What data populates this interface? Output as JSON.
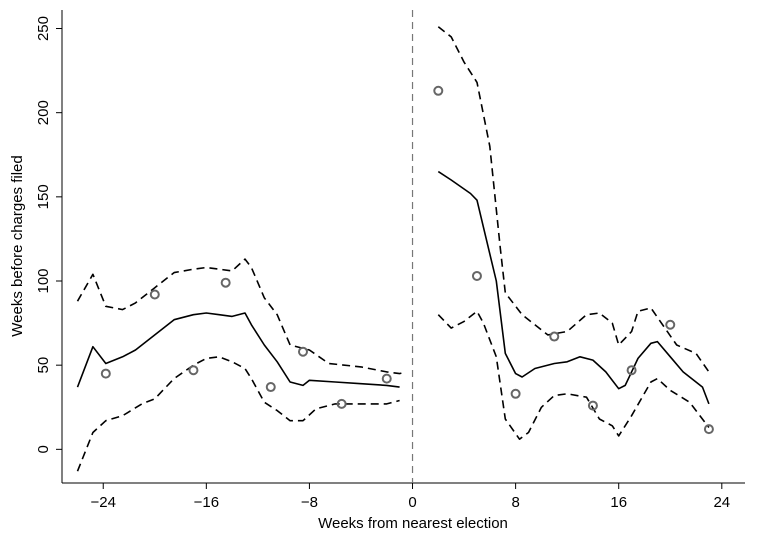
{
  "chart_data": {
    "type": "line",
    "x_label": "Weeks from nearest election",
    "y_label": "Weeks before charges filed",
    "xlim": [
      -27.2,
      25.8
    ],
    "ylim": [
      -20,
      261
    ],
    "xticks": [
      {
        "value": -24,
        "label": "−24"
      },
      {
        "value": -16,
        "label": "−16"
      },
      {
        "value": -8,
        "label": "−8"
      },
      0,
      8,
      16,
      24
    ],
    "yticks": [
      0,
      50,
      100,
      150,
      200,
      250
    ],
    "cutoff": 0,
    "grid": false,
    "series": [
      {
        "style": "solid",
        "color": "#000000",
        "x": [
          -26,
          -24.8,
          -23.8,
          -22.5,
          -21.5,
          -20,
          -18.5,
          -17,
          -16,
          -15,
          -14,
          -13,
          -12.5,
          -11.5,
          -10.5,
          -9.5,
          -8.5,
          -8,
          -6,
          -4,
          -2,
          -1
        ],
        "values": [
          37,
          61,
          51,
          55,
          59,
          68,
          77,
          80,
          81,
          80,
          79,
          81,
          74,
          62,
          52,
          40,
          38,
          41,
          40,
          39,
          38,
          37
        ]
      },
      {
        "style": "dashed",
        "color": "#000000",
        "x": [
          -26,
          -24.8,
          -23.8,
          -22.5,
          -21.5,
          -20,
          -18.5,
          -17,
          -16,
          -15,
          -14,
          -13,
          -12.5,
          -11.5,
          -10.5,
          -9.5,
          -8,
          -6.5,
          -4,
          -2,
          -1,
          -0.5
        ],
        "values": [
          88,
          104,
          85,
          83,
          87,
          96,
          105,
          107,
          108,
          107,
          106,
          113,
          108,
          90,
          80,
          62,
          59,
          51,
          49,
          46,
          45,
          46
        ]
      },
      {
        "style": "dashed",
        "color": "#000000",
        "x": [
          -26,
          -24.8,
          -23.8,
          -22.5,
          -21,
          -20,
          -18.5,
          -17,
          -16,
          -15,
          -14,
          -13,
          -12.5,
          -11.5,
          -10.5,
          -9.5,
          -8.5,
          -7.5,
          -6,
          -4,
          -2,
          -1
        ],
        "values": [
          -13,
          10,
          17,
          20,
          27,
          30,
          42,
          50,
          54,
          55,
          52,
          48,
          42,
          28,
          23,
          17,
          17,
          24,
          27,
          27,
          27,
          29
        ]
      },
      {
        "style": "solid",
        "color": "#000000",
        "x": [
          2,
          3,
          4.5,
          5,
          5.5,
          6.5,
          7.2,
          8,
          8.5,
          9.5,
          11,
          12,
          13,
          14,
          15,
          16,
          16.5,
          17.5,
          18.5,
          19,
          20,
          21,
          22.5,
          23
        ],
        "values": [
          165,
          160,
          152,
          148,
          132,
          100,
          57,
          45,
          43,
          48,
          51,
          52,
          55,
          53,
          46,
          36,
          38,
          54,
          63,
          64,
          55,
          46,
          37,
          27
        ]
      },
      {
        "style": "dashed",
        "color": "#000000",
        "x": [
          2,
          3,
          4,
          5,
          6,
          6.8,
          7.2,
          8.5,
          9.5,
          10.5,
          12,
          13.5,
          14.5,
          15.5,
          16,
          17,
          17.5,
          18.5,
          19.5,
          20.5,
          22,
          23
        ],
        "values": [
          251,
          245,
          230,
          218,
          180,
          120,
          93,
          80,
          74,
          68,
          70,
          80,
          81,
          75,
          62,
          70,
          82,
          84,
          73,
          62,
          57,
          46
        ]
      },
      {
        "style": "dashed",
        "color": "#000000",
        "x": [
          2,
          3,
          4,
          5,
          5.5,
          6.5,
          7.2,
          8.3,
          9,
          10,
          11,
          12,
          13.5,
          14.5,
          15.5,
          16,
          17,
          18.5,
          19,
          20,
          21.5,
          23
        ],
        "values": [
          80,
          72,
          76,
          82,
          75,
          55,
          18,
          6,
          10,
          25,
          32,
          33,
          31,
          18,
          14,
          8,
          20,
          40,
          42,
          35,
          28,
          13
        ]
      },
      {
        "style": "markers",
        "color": "#666666",
        "x": [
          -23.8,
          -20,
          -17,
          -14.5,
          -11,
          -8.5,
          -5.5,
          -2,
          2,
          5,
          8,
          11,
          14,
          17,
          20,
          23
        ],
        "values": [
          45,
          92,
          47,
          99,
          37,
          58,
          27,
          42,
          213,
          103,
          33,
          67,
          26,
          47,
          74,
          12
        ]
      }
    ]
  }
}
